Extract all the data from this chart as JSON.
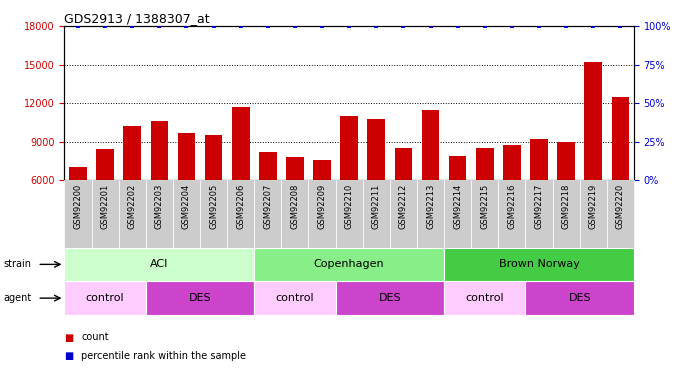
{
  "title": "GDS2913 / 1388307_at",
  "samples": [
    "GSM92200",
    "GSM92201",
    "GSM92202",
    "GSM92203",
    "GSM92204",
    "GSM92205",
    "GSM92206",
    "GSM92207",
    "GSM92208",
    "GSM92209",
    "GSM92210",
    "GSM92211",
    "GSM92212",
    "GSM92213",
    "GSM92214",
    "GSM92215",
    "GSM92216",
    "GSM92217",
    "GSM92218",
    "GSM92219",
    "GSM92220"
  ],
  "counts": [
    7000,
    8400,
    10200,
    10600,
    9700,
    9500,
    11700,
    8200,
    7800,
    7600,
    11000,
    10800,
    8500,
    11500,
    7900,
    8500,
    8700,
    9200,
    9000,
    15200,
    12500
  ],
  "percentiles": [
    100,
    100,
    100,
    100,
    100,
    100,
    100,
    100,
    100,
    100,
    100,
    100,
    100,
    100,
    100,
    100,
    100,
    100,
    100,
    100,
    100
  ],
  "bar_color": "#cc0000",
  "percentile_color": "#0000cc",
  "ylim_left": [
    6000,
    18000
  ],
  "ylim_right": [
    0,
    100
  ],
  "yticks_left": [
    6000,
    9000,
    12000,
    15000,
    18000
  ],
  "yticks_right": [
    0,
    25,
    50,
    75,
    100
  ],
  "strain_groups": [
    {
      "label": "ACI",
      "start": 0,
      "end": 6,
      "color": "#ccffcc"
    },
    {
      "label": "Copenhagen",
      "start": 7,
      "end": 13,
      "color": "#88ee88"
    },
    {
      "label": "Brown Norway",
      "start": 14,
      "end": 20,
      "color": "#44cc44"
    }
  ],
  "agent_groups": [
    {
      "label": "control",
      "start": 0,
      "end": 2,
      "color": "#ffccff"
    },
    {
      "label": "DES",
      "start": 3,
      "end": 6,
      "color": "#cc44cc"
    },
    {
      "label": "control",
      "start": 7,
      "end": 9,
      "color": "#ffccff"
    },
    {
      "label": "DES",
      "start": 10,
      "end": 13,
      "color": "#cc44cc"
    },
    {
      "label": "control",
      "start": 14,
      "end": 16,
      "color": "#ffccff"
    },
    {
      "label": "DES",
      "start": 17,
      "end": 20,
      "color": "#cc44cc"
    }
  ],
  "tick_color_left": "#cc0000",
  "tick_color_right": "#0000cc",
  "legend_count_color": "#cc0000",
  "legend_pct_color": "#0000cc",
  "xticklabel_bg": "#cccccc",
  "xticklabel_fontsize": 6,
  "bar_width": 0.65
}
